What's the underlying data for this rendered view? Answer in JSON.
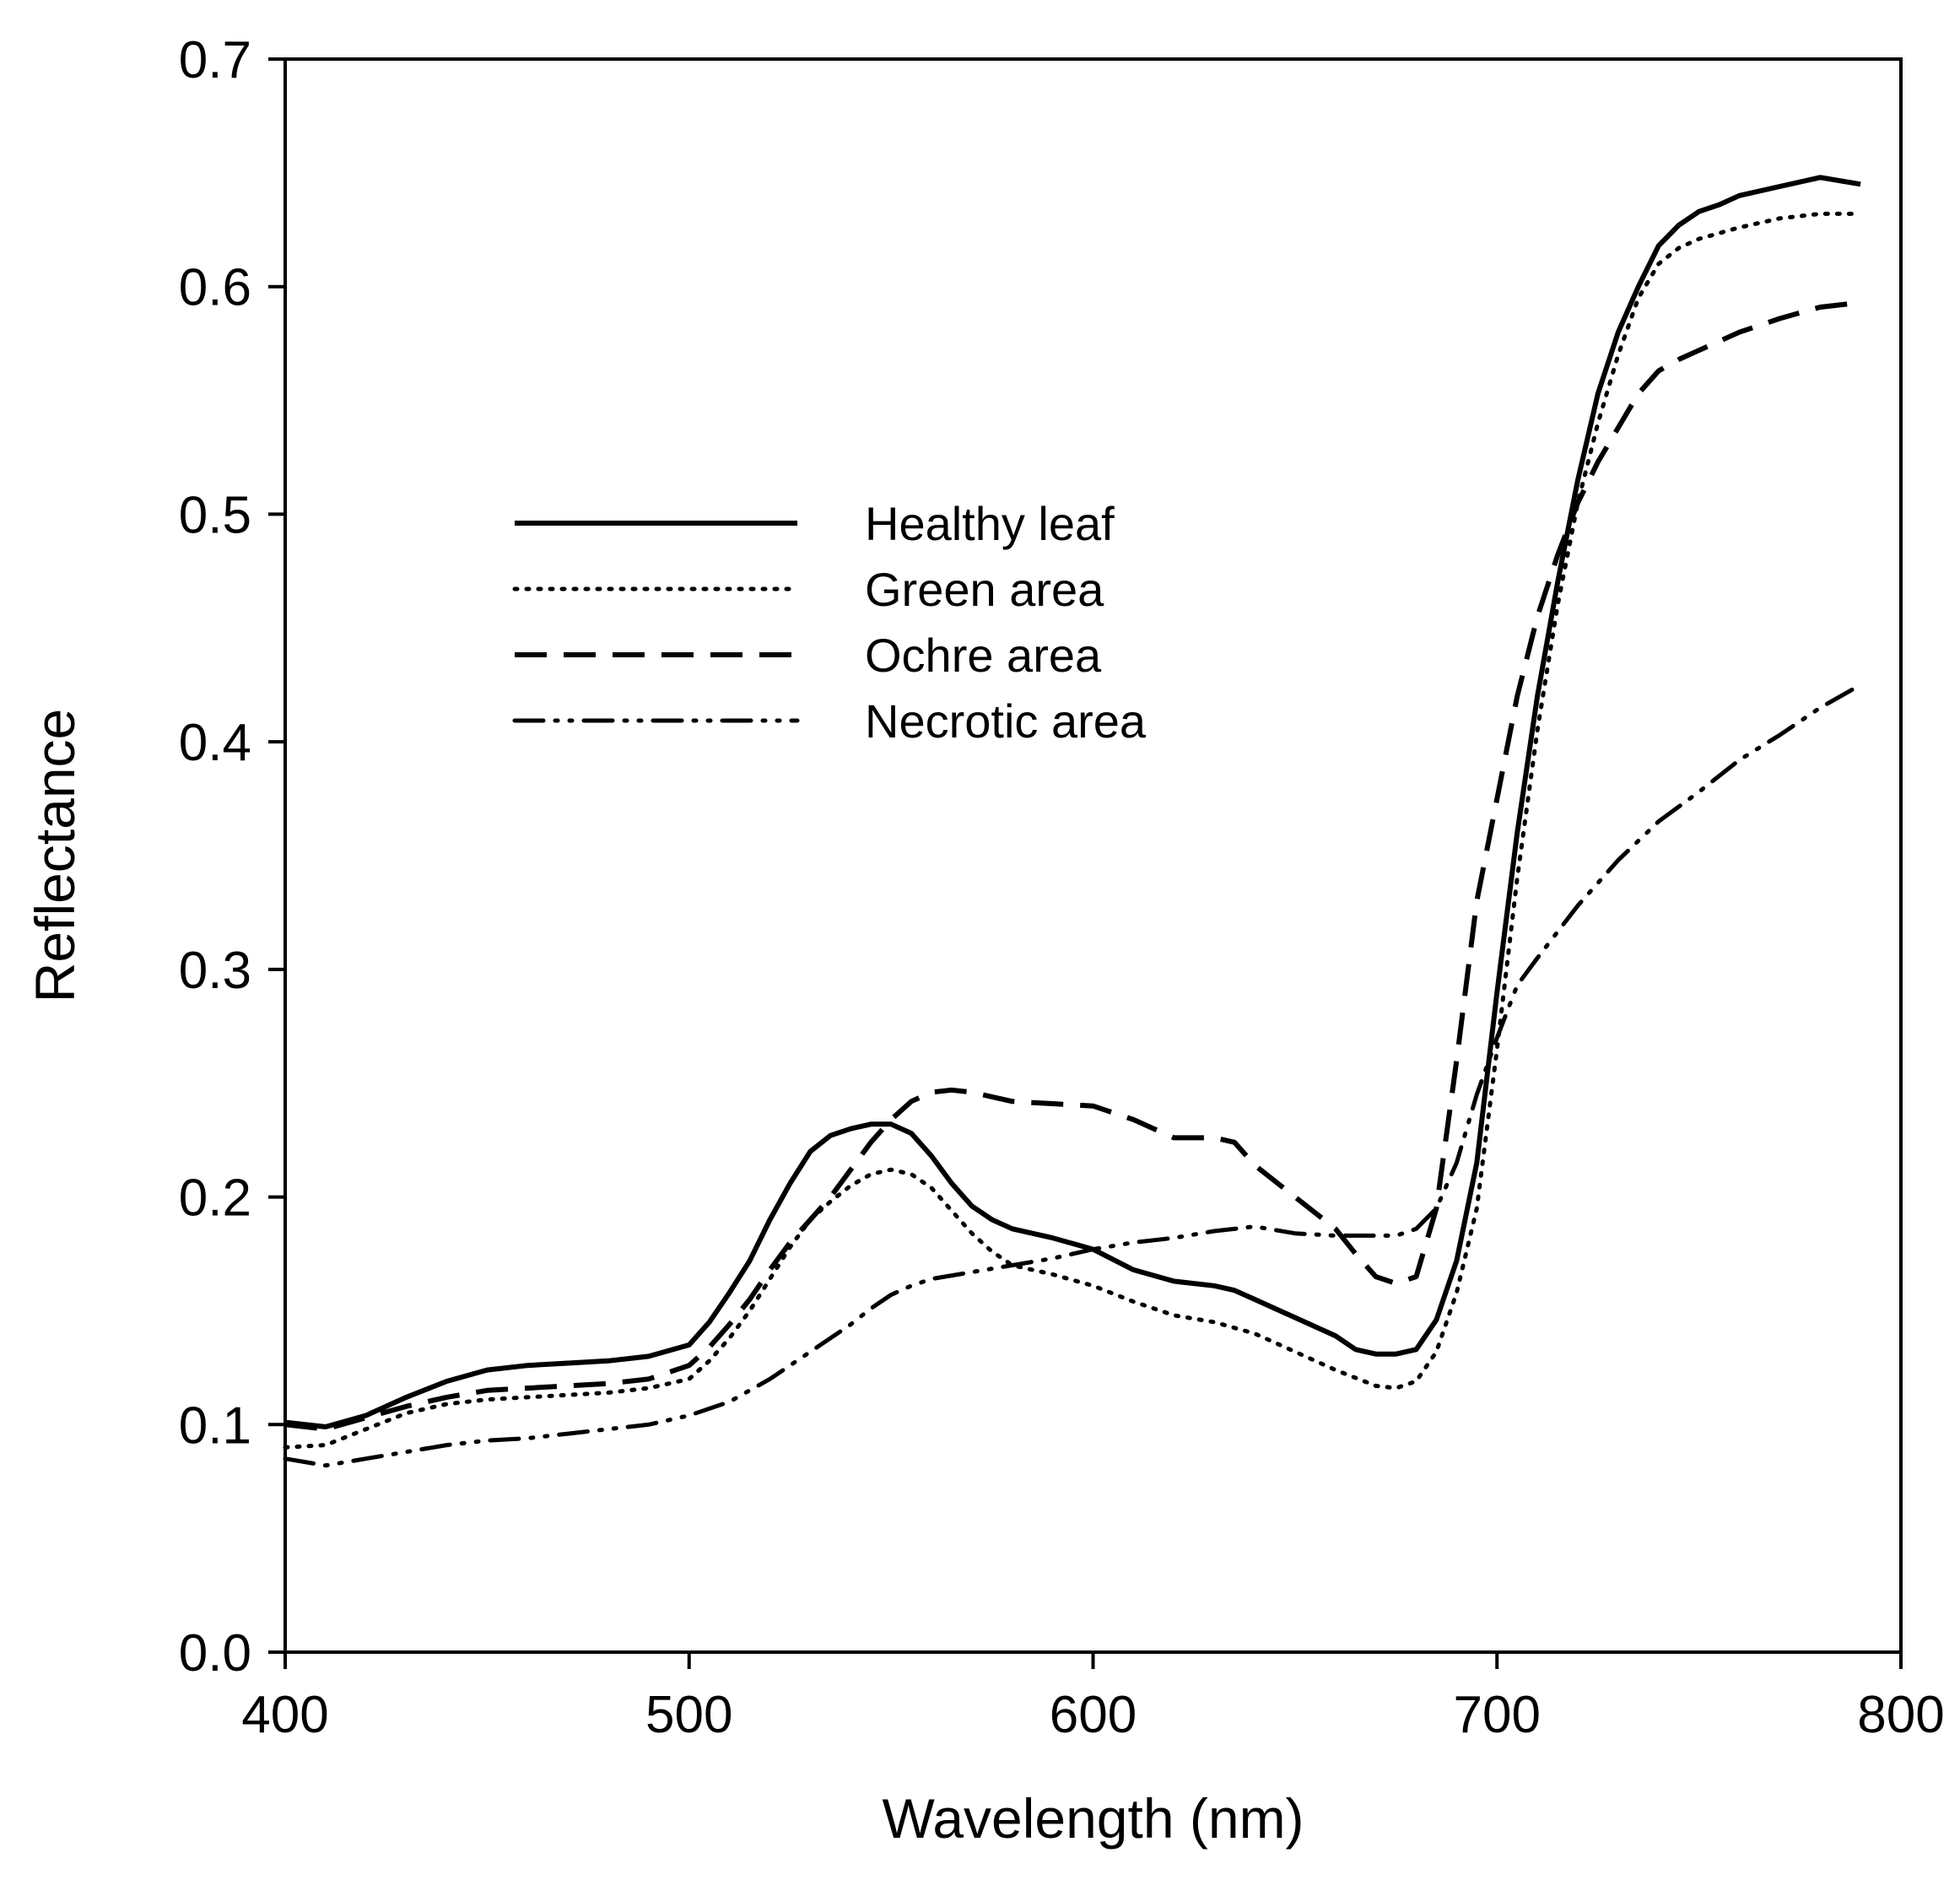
{
  "chart_data": {
    "type": "line",
    "title": "",
    "xlabel": "Wavelength (nm)",
    "ylabel": "Reflectance",
    "xlim": [
      400,
      800
    ],
    "ylim": [
      0.0,
      0.7
    ],
    "xticks": [
      400,
      500,
      600,
      700,
      800
    ],
    "xtick_labels": [
      "400",
      "500",
      "600",
      "700",
      "800"
    ],
    "yticks": [
      0.0,
      0.1,
      0.2,
      0.3,
      0.4,
      0.5,
      0.6,
      0.7
    ],
    "ytick_labels": [
      "0.0",
      "0.1",
      "0.2",
      "0.3",
      "0.4",
      "0.5",
      "0.6",
      "0.7"
    ],
    "grid": false,
    "legend_position": "upper-left-center",
    "series": [
      {
        "name": "Healthy leaf",
        "style": "solid",
        "x": [
          400,
          410,
          420,
          430,
          440,
          450,
          460,
          470,
          480,
          490,
          500,
          505,
          510,
          515,
          520,
          525,
          530,
          535,
          540,
          545,
          550,
          555,
          560,
          565,
          570,
          575,
          580,
          590,
          600,
          610,
          620,
          630,
          635,
          640,
          650,
          660,
          665,
          670,
          675,
          680,
          685,
          690,
          695,
          700,
          705,
          710,
          715,
          720,
          725,
          730,
          735,
          740,
          745,
          750,
          755,
          760,
          770,
          780,
          790
        ],
        "y": [
          0.101,
          0.099,
          0.104,
          0.112,
          0.119,
          0.124,
          0.126,
          0.127,
          0.128,
          0.13,
          0.135,
          0.145,
          0.158,
          0.172,
          0.19,
          0.206,
          0.22,
          0.227,
          0.23,
          0.232,
          0.232,
          0.228,
          0.218,
          0.206,
          0.196,
          0.19,
          0.186,
          0.182,
          0.177,
          0.168,
          0.163,
          0.161,
          0.159,
          0.155,
          0.147,
          0.139,
          0.133,
          0.131,
          0.131,
          0.133,
          0.146,
          0.172,
          0.215,
          0.29,
          0.36,
          0.42,
          0.47,
          0.515,
          0.553,
          0.58,
          0.6,
          0.618,
          0.627,
          0.633,
          0.636,
          0.64,
          0.644,
          0.648,
          0.645
        ]
      },
      {
        "name": "Green area",
        "style": "dotted",
        "x": [
          400,
          410,
          420,
          430,
          440,
          450,
          460,
          470,
          480,
          490,
          500,
          505,
          510,
          515,
          520,
          525,
          530,
          535,
          540,
          545,
          550,
          555,
          560,
          565,
          570,
          575,
          580,
          590,
          600,
          610,
          620,
          630,
          640,
          650,
          660,
          670,
          675,
          680,
          685,
          690,
          695,
          700,
          705,
          710,
          715,
          720,
          725,
          730,
          735,
          740,
          745,
          750,
          760,
          770,
          780,
          790
        ],
        "y": [
          0.09,
          0.091,
          0.098,
          0.105,
          0.109,
          0.111,
          0.112,
          0.113,
          0.114,
          0.116,
          0.12,
          0.128,
          0.138,
          0.15,
          0.164,
          0.178,
          0.19,
          0.198,
          0.205,
          0.21,
          0.212,
          0.21,
          0.204,
          0.194,
          0.184,
          0.176,
          0.17,
          0.166,
          0.161,
          0.154,
          0.148,
          0.145,
          0.14,
          0.132,
          0.124,
          0.117,
          0.116,
          0.119,
          0.132,
          0.158,
          0.195,
          0.265,
          0.34,
          0.405,
          0.46,
          0.505,
          0.54,
          0.57,
          0.595,
          0.61,
          0.617,
          0.621,
          0.626,
          0.63,
          0.632,
          0.632
        ]
      },
      {
        "name": "Ochre area",
        "style": "dashed",
        "x": [
          400,
          410,
          420,
          430,
          440,
          450,
          460,
          470,
          480,
          490,
          500,
          505,
          510,
          515,
          520,
          525,
          530,
          535,
          540,
          545,
          550,
          555,
          560,
          565,
          570,
          575,
          580,
          590,
          600,
          610,
          620,
          630,
          635,
          640,
          650,
          660,
          665,
          670,
          675,
          680,
          685,
          690,
          695,
          700,
          705,
          710,
          715,
          720,
          725,
          730,
          735,
          740,
          745,
          750,
          760,
          770,
          780,
          790
        ],
        "y": [
          0.1,
          0.098,
          0.103,
          0.108,
          0.112,
          0.115,
          0.116,
          0.117,
          0.118,
          0.12,
          0.126,
          0.134,
          0.144,
          0.155,
          0.168,
          0.18,
          0.19,
          0.2,
          0.212,
          0.224,
          0.234,
          0.242,
          0.246,
          0.247,
          0.246,
          0.244,
          0.242,
          0.241,
          0.24,
          0.234,
          0.226,
          0.226,
          0.224,
          0.214,
          0.2,
          0.186,
          0.175,
          0.165,
          0.162,
          0.165,
          0.195,
          0.26,
          0.33,
          0.375,
          0.42,
          0.455,
          0.482,
          0.505,
          0.523,
          0.538,
          0.553,
          0.563,
          0.568,
          0.572,
          0.58,
          0.586,
          0.591,
          0.593
        ]
      },
      {
        "name": "Necrotic area",
        "style": "dash-dot-dot",
        "x": [
          400,
          410,
          420,
          430,
          440,
          450,
          460,
          470,
          480,
          490,
          500,
          510,
          520,
          530,
          540,
          545,
          550,
          555,
          560,
          570,
          580,
          590,
          600,
          610,
          620,
          630,
          640,
          650,
          660,
          670,
          675,
          680,
          685,
          690,
          695,
          700,
          705,
          710,
          720,
          730,
          740,
          750,
          760,
          770,
          780,
          790
        ],
        "y": [
          0.085,
          0.082,
          0.085,
          0.088,
          0.091,
          0.093,
          0.094,
          0.096,
          0.098,
          0.1,
          0.104,
          0.11,
          0.12,
          0.132,
          0.144,
          0.151,
          0.157,
          0.161,
          0.164,
          0.167,
          0.17,
          0.173,
          0.177,
          0.18,
          0.182,
          0.185,
          0.187,
          0.184,
          0.183,
          0.183,
          0.183,
          0.186,
          0.195,
          0.215,
          0.245,
          0.27,
          0.293,
          0.305,
          0.328,
          0.348,
          0.365,
          0.378,
          0.392,
          0.403,
          0.415,
          0.425
        ]
      }
    ]
  }
}
